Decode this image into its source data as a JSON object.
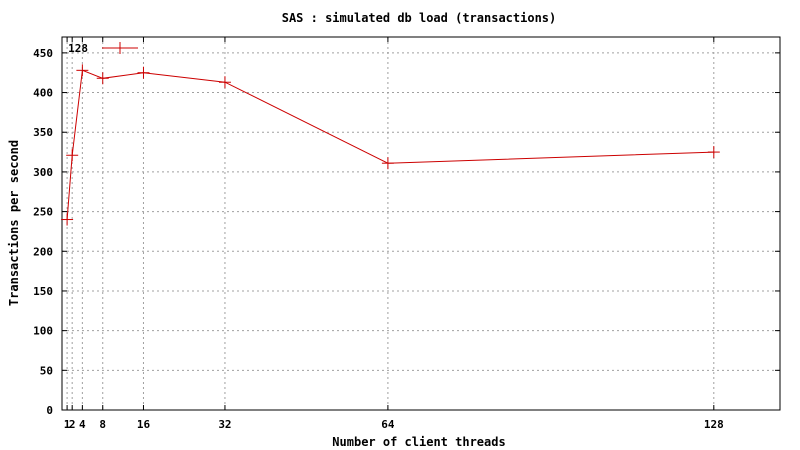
{
  "chart_data": {
    "type": "line",
    "title": "SAS : simulated db load (transactions)",
    "xlabel": "Number of client threads",
    "ylabel": "Transactions per second",
    "xlim": [
      0,
      141
    ],
    "ylim": [
      0,
      470
    ],
    "xticks": [
      1,
      2,
      4,
      8,
      16,
      32,
      64,
      128
    ],
    "yticks": [
      0,
      50,
      100,
      150,
      200,
      250,
      300,
      350,
      400,
      450
    ],
    "grid": true,
    "legend_position": "top-left",
    "series": [
      {
        "name": "128",
        "color": "#cc0000",
        "marker": "plus",
        "x": [
          1,
          2,
          4,
          8,
          16,
          32,
          64,
          128
        ],
        "y": [
          240,
          321,
          428,
          418,
          425,
          413,
          311,
          325
        ]
      }
    ]
  }
}
